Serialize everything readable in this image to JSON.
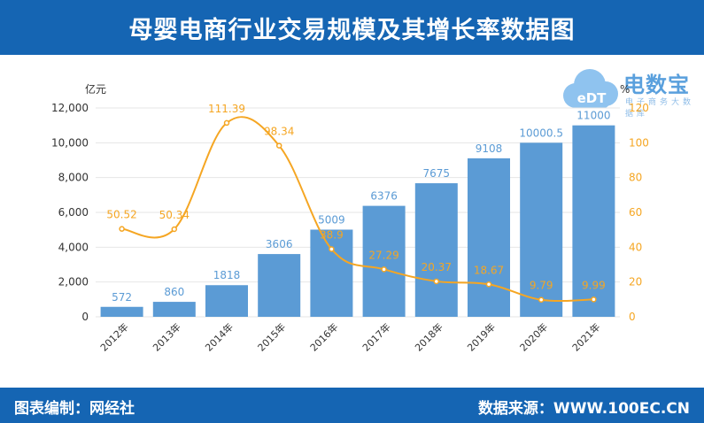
{
  "header": {
    "title": "母婴电商行业交易规模及其增长率数据图"
  },
  "footer": {
    "credit": "图表编制：网经社",
    "source": "数据来源：WWW.100EC.CN"
  },
  "logo": {
    "text": "电数宝",
    "sub": "电子商务大数据库"
  },
  "colors": {
    "header_bg": "#1565b3",
    "bar": "#5b9bd5",
    "line": "#f5a623",
    "bar_label": "#5b9bd5",
    "line_label": "#f5a623"
  },
  "chart_data": {
    "type": "bar",
    "categories": [
      "2012年",
      "2013年",
      "2014年",
      "2015年",
      "2016年",
      "2017年",
      "2018年",
      "2019年",
      "2020年",
      "2021年"
    ],
    "series": [
      {
        "type": "bar",
        "axis": "left",
        "values": [
          572,
          860,
          1818,
          3606,
          5009,
          6376,
          7675,
          9108,
          10000.5,
          11000
        ],
        "labels": [
          "572",
          "860",
          "1818",
          "3606",
          "5009",
          "6376",
          "7675",
          "9108",
          "10000.5",
          "11000"
        ]
      },
      {
        "type": "line",
        "axis": "right",
        "values": [
          50.52,
          50.34,
          111.39,
          98.34,
          38.9,
          27.29,
          20.37,
          18.67,
          9.79,
          9.99
        ],
        "labels": [
          "50.52",
          "50.34",
          "111.39",
          "98.34",
          "38.9",
          "27.29",
          "20.37",
          "18.67",
          "9.79",
          "9.99"
        ]
      }
    ],
    "y_left": {
      "unit": "亿元",
      "ylim": [
        0,
        12000
      ],
      "ticks": [
        "0",
        "2,000",
        "4,000",
        "6,000",
        "8,000",
        "10,000",
        "12,000"
      ]
    },
    "y_right": {
      "unit": "%",
      "ylim": [
        0,
        120
      ],
      "ticks": [
        "0",
        "20",
        "40",
        "60",
        "80",
        "100",
        "120"
      ]
    },
    "grid": true,
    "legend": "none"
  }
}
